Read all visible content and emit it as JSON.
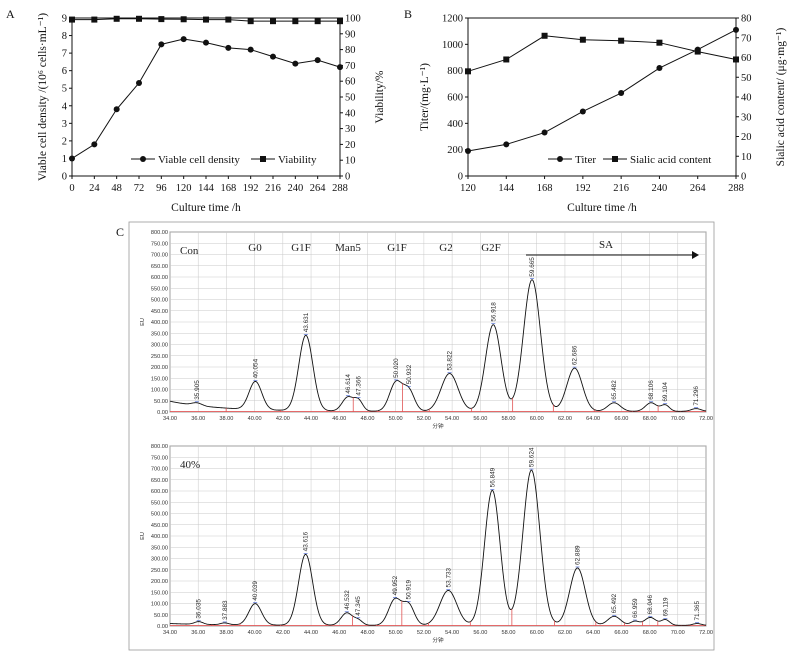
{
  "panels": {
    "A": {
      "letter": "A",
      "type": "line",
      "xlabel": "Culture time /h",
      "ylabel_left": "Viable cell density /(10⁶ cells·mL⁻¹)",
      "ylabel_right": "Viability/%",
      "x": [
        0,
        24,
        48,
        72,
        96,
        120,
        144,
        168,
        192,
        216,
        240,
        264,
        288
      ],
      "xticks": [
        "0",
        "24",
        "48",
        "72",
        "96",
        "120",
        "144",
        "168",
        "192",
        "216",
        "240",
        "264",
        "288"
      ],
      "yticks_left": [
        "0",
        "1",
        "2",
        "3",
        "4",
        "5",
        "6",
        "7",
        "8",
        "9"
      ],
      "yticks_right": [
        "0",
        "10",
        "20",
        "30",
        "40",
        "50",
        "60",
        "70",
        "80",
        "90",
        "100"
      ],
      "ylim_left": [
        0,
        9
      ],
      "ylim_right": [
        0,
        100
      ],
      "series": [
        {
          "name": "Viable cell density",
          "marker": "circle",
          "axis": "left",
          "values": [
            1.0,
            1.8,
            3.8,
            5.3,
            7.5,
            7.8,
            7.6,
            7.3,
            7.2,
            6.8,
            6.4,
            6.6,
            6.2
          ]
        },
        {
          "name": "Viability",
          "marker": "square",
          "axis": "right",
          "values": [
            99,
            99,
            99.5,
            99.5,
            99.3,
            99.2,
            99,
            99,
            98,
            98,
            98,
            98,
            98
          ]
        }
      ]
    },
    "B": {
      "letter": "B",
      "type": "line",
      "xlabel": "Culture time /h",
      "ylabel_left": "Titer/(mg·L⁻¹)",
      "ylabel_right": "Sialic acid content/ (μg·mg⁻¹)",
      "x": [
        120,
        144,
        168,
        192,
        216,
        240,
        264,
        288
      ],
      "xticks": [
        "120",
        "144",
        "168",
        "192",
        "216",
        "240",
        "264",
        "288"
      ],
      "yticks_left": [
        "0",
        "200",
        "400",
        "600",
        "800",
        "1000",
        "1200"
      ],
      "yticks_right": [
        "0",
        "10",
        "20",
        "30",
        "40",
        "50",
        "60",
        "70",
        "80"
      ],
      "ylim_left": [
        0,
        1200
      ],
      "ylim_right": [
        0,
        80
      ],
      "series": [
        {
          "name": "Titer",
          "marker": "circle",
          "axis": "left",
          "values": [
            190,
            240,
            330,
            490,
            630,
            820,
            960,
            1110
          ]
        },
        {
          "name": "Sialic acid content",
          "marker": "square",
          "axis": "right",
          "values": [
            53,
            59,
            71,
            69,
            68.5,
            67.5,
            63,
            59
          ]
        }
      ]
    },
    "C": {
      "letter": "C",
      "type": "line",
      "xticks": [
        "34.00",
        "36.00",
        "38.00",
        "40.00",
        "42.00",
        "44.00",
        "46.00",
        "48.00",
        "50.00",
        "52.00",
        "54.00",
        "56.00",
        "58.00",
        "60.00",
        "62.00",
        "64.00",
        "66.00",
        "68.00",
        "70.00",
        "72.00"
      ],
      "yticks": [
        "0.00",
        "50.00",
        "100.00",
        "150.00",
        "200.00",
        "250.00",
        "300.00",
        "350.00",
        "400.00",
        "450.00",
        "500.00",
        "550.00",
        "600.00",
        "650.00",
        "700.00",
        "750.00",
        "800.00"
      ],
      "ylim": [
        0,
        800
      ],
      "ylabel": "EU",
      "xlabel": "分钟",
      "glycan_labels": [
        "G0",
        "G1F",
        "Man5",
        "G1F",
        "G2",
        "G2F",
        "SA"
      ],
      "chromatograms": [
        {
          "name": "Con",
          "baseline": 45,
          "peaks": [
            {
              "rt": 35.905,
              "label": "35.905",
              "height": 12,
              "width": 0.35
            },
            {
              "rt": 40.054,
              "label": "40.054",
              "height": 125,
              "width": 0.45
            },
            {
              "rt": 43.631,
              "label": "43.631",
              "height": 335,
              "width": 0.5
            },
            {
              "rt": 46.614,
              "label": "46.614",
              "height": 62,
              "width": 0.4
            },
            {
              "rt": 47.366,
              "label": "47.366",
              "height": 45,
              "width": 0.3
            },
            {
              "rt": 50.02,
              "label": "50.020",
              "height": 128,
              "width": 0.45
            },
            {
              "rt": 50.932,
              "label": "50.932",
              "height": 90,
              "width": 0.4
            },
            {
              "rt": 53.822,
              "label": "53.822",
              "height": 168,
              "width": 0.6
            },
            {
              "rt": 56.918,
              "label": "56.918",
              "height": 385,
              "width": 0.55
            },
            {
              "rt": 59.665,
              "label": "59.665",
              "height": 585,
              "width": 0.6
            },
            {
              "rt": 62.686,
              "label": "62.686",
              "height": 192,
              "width": 0.55
            },
            {
              "rt": 65.482,
              "label": "65.482",
              "height": 38,
              "width": 0.45
            },
            {
              "rt": 68.106,
              "label": "68.106",
              "height": 38,
              "width": 0.4
            },
            {
              "rt": 69.104,
              "label": "69.104",
              "height": 28,
              "width": 0.3
            },
            {
              "rt": 71.296,
              "label": "71.296",
              "height": 12,
              "width": 0.35
            }
          ]
        },
        {
          "name": "40%",
          "baseline": 8,
          "peaks": [
            {
              "rt": 36.035,
              "label": "36.035",
              "height": 12,
              "width": 0.3
            },
            {
              "rt": 37.883,
              "label": "37.883",
              "height": 8,
              "width": 0.3
            },
            {
              "rt": 40.039,
              "label": "40.039",
              "height": 95,
              "width": 0.45
            },
            {
              "rt": 43.616,
              "label": "43.616",
              "height": 315,
              "width": 0.5
            },
            {
              "rt": 46.532,
              "label": "46.532",
              "height": 55,
              "width": 0.4
            },
            {
              "rt": 47.345,
              "label": "47.345",
              "height": 22,
              "width": 0.3
            },
            {
              "rt": 49.952,
              "label": "49.952",
              "height": 115,
              "width": 0.45
            },
            {
              "rt": 50.919,
              "label": "50.919",
              "height": 90,
              "width": 0.4
            },
            {
              "rt": 53.733,
              "label": "53.733",
              "height": 155,
              "width": 0.6
            },
            {
              "rt": 56.849,
              "label": "56.849",
              "height": 600,
              "width": 0.55
            },
            {
              "rt": 59.624,
              "label": "59.624",
              "height": 690,
              "width": 0.6
            },
            {
              "rt": 62.889,
              "label": "62.889",
              "height": 255,
              "width": 0.55
            },
            {
              "rt": 65.492,
              "label": "65.492",
              "height": 40,
              "width": 0.45
            },
            {
              "rt": 66.959,
              "label": "66.959",
              "height": 18,
              "width": 0.3
            },
            {
              "rt": 68.046,
              "label": "68.046",
              "height": 35,
              "width": 0.4
            },
            {
              "rt": 69.119,
              "label": "69.119",
              "height": 25,
              "width": 0.3
            },
            {
              "rt": 71.365,
              "label": "71.365",
              "height": 8,
              "width": 0.3
            }
          ]
        }
      ]
    }
  },
  "chart_data": [
    {
      "type": "line",
      "title": "A",
      "xlabel": "Culture time /h",
      "ylabel": "Viable cell density /(10⁶ cells·mL⁻¹)",
      "y2label": "Viability/%",
      "x": [
        0,
        24,
        48,
        72,
        96,
        120,
        144,
        168,
        192,
        216,
        240,
        264,
        288
      ],
      "ylim": [
        0,
        9
      ],
      "y2lim": [
        0,
        100
      ],
      "series": [
        {
          "name": "Viable cell density",
          "values": [
            1.0,
            1.8,
            3.8,
            5.3,
            7.5,
            7.8,
            7.6,
            7.3,
            7.2,
            6.8,
            6.4,
            6.6,
            6.2
          ]
        },
        {
          "name": "Viability",
          "values": [
            99,
            99,
            99.5,
            99.5,
            99.3,
            99.2,
            99,
            99,
            98,
            98,
            98,
            98,
            98
          ]
        }
      ]
    },
    {
      "type": "line",
      "title": "B",
      "xlabel": "Culture time /h",
      "ylabel": "Titer/(mg·L⁻¹)",
      "y2label": "Sialic acid content/ (μg·mg⁻¹)",
      "x": [
        120,
        144,
        168,
        192,
        216,
        240,
        264,
        288
      ],
      "ylim": [
        0,
        1200
      ],
      "y2lim": [
        0,
        80
      ],
      "series": [
        {
          "name": "Titer",
          "values": [
            190,
            240,
            330,
            490,
            630,
            820,
            960,
            1110
          ]
        },
        {
          "name": "Sialic acid content",
          "values": [
            53,
            59,
            71,
            69,
            68.5,
            67.5,
            63,
            59
          ]
        }
      ]
    },
    {
      "type": "line",
      "title": "C",
      "xlabel": "分钟",
      "ylabel": "EU",
      "xlim": [
        34,
        72
      ],
      "ylim": [
        0,
        800
      ],
      "series": [
        {
          "name": "Con",
          "peak_rt": [
            35.905,
            40.054,
            43.631,
            46.614,
            47.366,
            50.02,
            50.932,
            53.822,
            56.918,
            59.665,
            62.686,
            65.482,
            68.106,
            69.104,
            71.296
          ],
          "peak_height": [
            12,
            125,
            335,
            62,
            45,
            128,
            90,
            168,
            385,
            585,
            192,
            38,
            38,
            28,
            12
          ]
        },
        {
          "name": "40%",
          "peak_rt": [
            36.035,
            37.883,
            40.039,
            43.616,
            46.532,
            47.345,
            49.952,
            50.919,
            53.733,
            56.849,
            59.624,
            62.889,
            65.492,
            66.959,
            68.046,
            69.119,
            71.365
          ],
          "peak_height": [
            12,
            8,
            95,
            315,
            55,
            22,
            115,
            90,
            155,
            600,
            690,
            255,
            40,
            18,
            35,
            25,
            8
          ]
        }
      ]
    }
  ]
}
